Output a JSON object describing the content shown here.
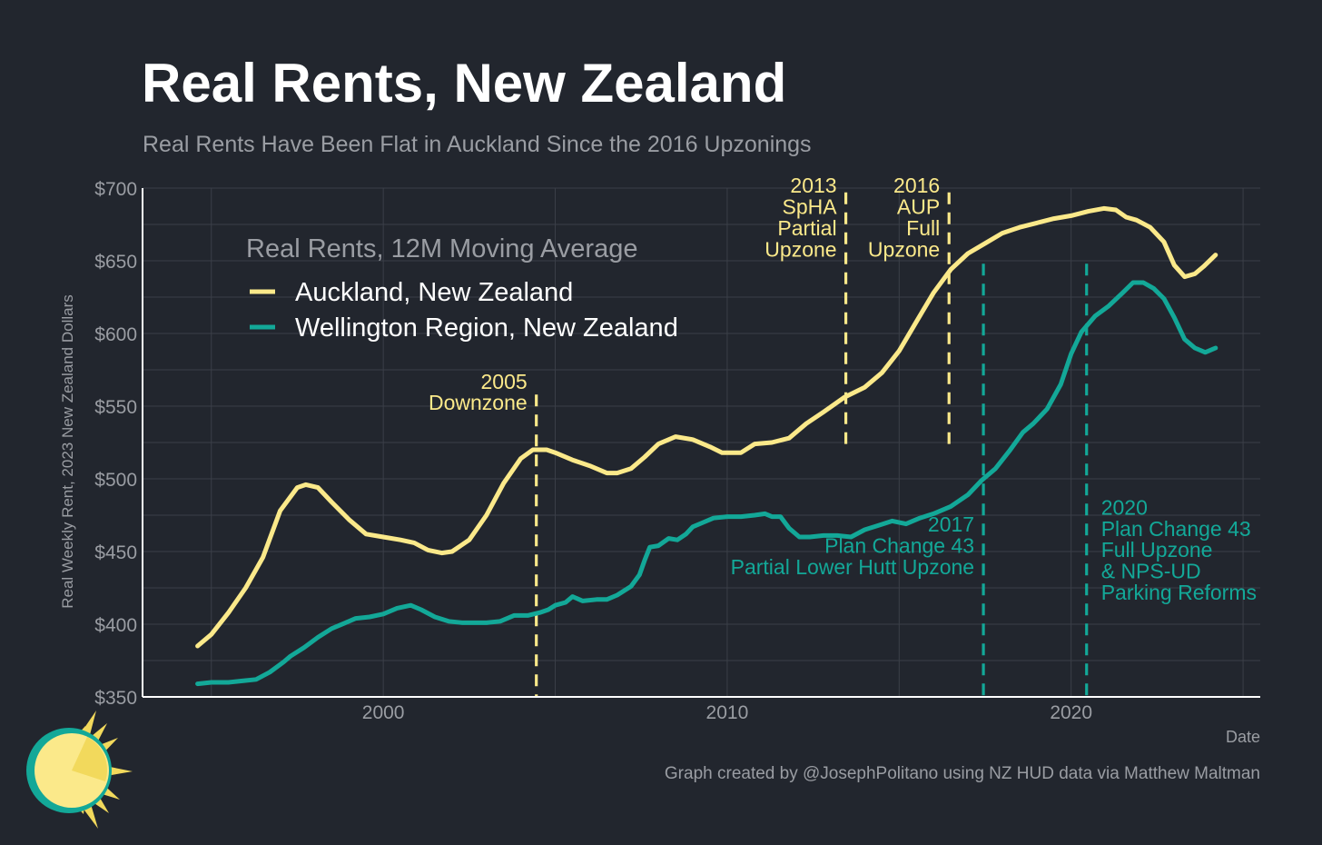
{
  "title": "Real Rents, New Zealand",
  "subtitle": "Real Rents Have Been Flat in Auckland Since the 2016 Upzonings",
  "credit": "Graph created by @JosephPolitano using NZ HUD data via Matthew Maltman",
  "logo_icon": "sun-icon",
  "colors": {
    "background": "#22262e",
    "grid": "#3b3f48",
    "auckland": "#fbe98a",
    "wellington": "#13a898",
    "muted_text": "#9a9da3"
  },
  "chart_data": {
    "type": "line",
    "title": "Real Rents, New Zealand",
    "subtitle": "Real Rents Have Been Flat in Auckland Since the 2016 Upzonings",
    "xlabel": "Date",
    "ylabel": "Real Weekly Rent, 2023 New Zealand Dollars",
    "xlim": [
      1993.0,
      2025.5
    ],
    "ylim": [
      350,
      700
    ],
    "x_ticks": [
      2000,
      2010,
      2020
    ],
    "x_tick_labels": [
      "2000",
      "2010",
      "2020"
    ],
    "y_ticks": [
      350,
      400,
      450,
      500,
      550,
      600,
      650,
      700
    ],
    "y_tick_labels": [
      "$350",
      "$400",
      "$450",
      "$500",
      "$550",
      "$600",
      "$650",
      "$700"
    ],
    "grid": true,
    "legend": {
      "title": "Real Rents, 12M Moving Average",
      "position": "top-left"
    },
    "series": [
      {
        "name": "Auckland, New Zealand",
        "color": "#fbe98a",
        "points": [
          [
            1994.6,
            385
          ],
          [
            1995.0,
            393
          ],
          [
            1995.5,
            408
          ],
          [
            1996.0,
            425
          ],
          [
            1996.5,
            446
          ],
          [
            1997.0,
            478
          ],
          [
            1997.5,
            494
          ],
          [
            1997.75,
            496
          ],
          [
            1998.1,
            494
          ],
          [
            1998.5,
            484
          ],
          [
            1999.0,
            472
          ],
          [
            1999.5,
            462
          ],
          [
            2000.0,
            460
          ],
          [
            2000.5,
            458
          ],
          [
            2000.9,
            456
          ],
          [
            2001.3,
            451
          ],
          [
            2001.7,
            449
          ],
          [
            2002.0,
            450
          ],
          [
            2002.5,
            458
          ],
          [
            2003.0,
            475
          ],
          [
            2003.5,
            497
          ],
          [
            2004.0,
            514
          ],
          [
            2004.35,
            520
          ],
          [
            2004.75,
            520
          ],
          [
            2005.0,
            518
          ],
          [
            2005.5,
            513
          ],
          [
            2006.0,
            509
          ],
          [
            2006.5,
            504
          ],
          [
            2006.8,
            504
          ],
          [
            2007.2,
            507
          ],
          [
            2007.6,
            515
          ],
          [
            2008.0,
            524
          ],
          [
            2008.5,
            529
          ],
          [
            2009.0,
            527
          ],
          [
            2009.5,
            522
          ],
          [
            2009.85,
            518
          ],
          [
            2010.4,
            518
          ],
          [
            2010.8,
            524
          ],
          [
            2011.3,
            525
          ],
          [
            2011.8,
            528
          ],
          [
            2012.3,
            538
          ],
          [
            2012.8,
            546
          ],
          [
            2013.4,
            556
          ],
          [
            2014.0,
            563
          ],
          [
            2014.5,
            573
          ],
          [
            2015.0,
            588
          ],
          [
            2015.5,
            608
          ],
          [
            2016.0,
            628
          ],
          [
            2016.5,
            644
          ],
          [
            2017.0,
            655
          ],
          [
            2017.5,
            662
          ],
          [
            2018.0,
            669
          ],
          [
            2018.5,
            673
          ],
          [
            2019.0,
            676
          ],
          [
            2019.5,
            679
          ],
          [
            2020.0,
            681
          ],
          [
            2020.5,
            684
          ],
          [
            2020.95,
            686
          ],
          [
            2021.3,
            685
          ],
          [
            2021.6,
            680
          ],
          [
            2021.9,
            678
          ],
          [
            2022.3,
            673
          ],
          [
            2022.7,
            663
          ],
          [
            2023.0,
            647
          ],
          [
            2023.3,
            639
          ],
          [
            2023.6,
            641
          ],
          [
            2023.85,
            646
          ],
          [
            2024.2,
            654
          ]
        ]
      },
      {
        "name": "Wellington Region, New Zealand",
        "color": "#13a898",
        "points": [
          [
            1994.6,
            359
          ],
          [
            1995.0,
            360
          ],
          [
            1995.5,
            360
          ],
          [
            1995.9,
            361
          ],
          [
            1996.3,
            362
          ],
          [
            1996.7,
            367
          ],
          [
            1997.1,
            374
          ],
          [
            1997.3,
            378
          ],
          [
            1997.7,
            384
          ],
          [
            1998.1,
            391
          ],
          [
            1998.5,
            397
          ],
          [
            1998.9,
            401
          ],
          [
            1999.2,
            404
          ],
          [
            1999.6,
            405
          ],
          [
            2000.0,
            407
          ],
          [
            2000.4,
            411
          ],
          [
            2000.8,
            413
          ],
          [
            2001.1,
            410
          ],
          [
            2001.5,
            405
          ],
          [
            2001.9,
            402
          ],
          [
            2002.3,
            401
          ],
          [
            2002.6,
            401
          ],
          [
            2003.0,
            401
          ],
          [
            2003.4,
            402
          ],
          [
            2003.8,
            406
          ],
          [
            2004.2,
            406
          ],
          [
            2004.55,
            408
          ],
          [
            2004.8,
            410
          ],
          [
            2005.0,
            413
          ],
          [
            2005.3,
            415
          ],
          [
            2005.5,
            419
          ],
          [
            2005.8,
            416
          ],
          [
            2006.2,
            417
          ],
          [
            2006.5,
            417
          ],
          [
            2006.8,
            420
          ],
          [
            2007.2,
            426
          ],
          [
            2007.45,
            434
          ],
          [
            2007.6,
            444
          ],
          [
            2007.75,
            453
          ],
          [
            2008.0,
            454
          ],
          [
            2008.3,
            459
          ],
          [
            2008.55,
            458
          ],
          [
            2008.8,
            462
          ],
          [
            2009.0,
            467
          ],
          [
            2009.3,
            470
          ],
          [
            2009.6,
            473
          ],
          [
            2010.0,
            474
          ],
          [
            2010.4,
            474
          ],
          [
            2010.8,
            475
          ],
          [
            2011.1,
            476
          ],
          [
            2011.3,
            474
          ],
          [
            2011.55,
            474
          ],
          [
            2011.8,
            466
          ],
          [
            2012.1,
            460
          ],
          [
            2012.4,
            460
          ],
          [
            2012.8,
            461
          ],
          [
            2013.2,
            461
          ],
          [
            2013.6,
            460
          ],
          [
            2014.0,
            465
          ],
          [
            2014.4,
            468
          ],
          [
            2014.8,
            471
          ],
          [
            2015.2,
            469
          ],
          [
            2015.6,
            473
          ],
          [
            2016.0,
            476
          ],
          [
            2016.5,
            481
          ],
          [
            2017.0,
            489
          ],
          [
            2017.4,
            499
          ],
          [
            2017.8,
            507
          ],
          [
            2018.2,
            519
          ],
          [
            2018.6,
            532
          ],
          [
            2018.9,
            538
          ],
          [
            2019.3,
            548
          ],
          [
            2019.7,
            565
          ],
          [
            2020.0,
            586
          ],
          [
            2020.3,
            601
          ],
          [
            2020.7,
            612
          ],
          [
            2021.1,
            619
          ],
          [
            2021.5,
            628
          ],
          [
            2021.8,
            635
          ],
          [
            2022.1,
            635
          ],
          [
            2022.4,
            631
          ],
          [
            2022.7,
            624
          ],
          [
            2023.0,
            611
          ],
          [
            2023.3,
            596
          ],
          [
            2023.6,
            590
          ],
          [
            2023.9,
            587
          ],
          [
            2024.2,
            590
          ]
        ]
      }
    ],
    "annotations": [
      {
        "x": 2004.45,
        "text": [
          "2005",
          "Downzone"
        ],
        "color": "#fbe98a"
      },
      {
        "x": 2013.45,
        "text": [
          "2013",
          "SpHA",
          "Partial",
          "Upzone"
        ],
        "color": "#fbe98a"
      },
      {
        "x": 2016.45,
        "text": [
          "2016",
          "AUP",
          "Full",
          "Upzone"
        ],
        "color": "#fbe98a"
      },
      {
        "x": 2017.45,
        "text": [
          "2017",
          "Plan Change 43",
          "Partial Lower Hutt Upzone"
        ],
        "color": "#13a898"
      },
      {
        "x": 2020.45,
        "text": [
          "2020",
          "Plan Change 43",
          "Full Upzone",
          "& NPS-UD",
          "Parking Reforms"
        ],
        "color": "#13a898"
      }
    ]
  }
}
